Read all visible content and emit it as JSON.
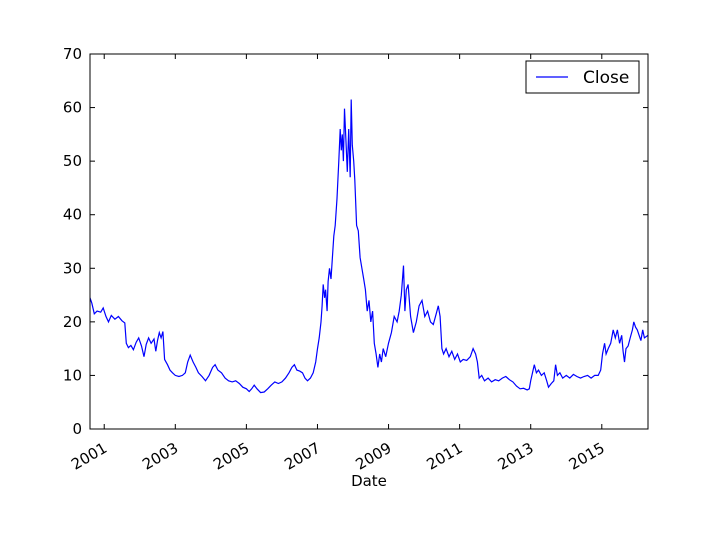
{
  "chart_data": {
    "type": "line",
    "title": "",
    "xlabel": "Date",
    "ylabel": "",
    "xlim": [
      2000.6,
      2016.3
    ],
    "ylim": [
      0,
      70
    ],
    "grid": false,
    "legend_position": "top-right",
    "yticks": [
      0,
      10,
      20,
      30,
      40,
      50,
      60,
      70
    ],
    "xticks": [
      {
        "value": 2001,
        "label": "2001"
      },
      {
        "value": 2003,
        "label": "2003"
      },
      {
        "value": 2005,
        "label": "2005"
      },
      {
        "value": 2007,
        "label": "2007"
      },
      {
        "value": 2009,
        "label": "2009"
      },
      {
        "value": 2011,
        "label": "2011"
      },
      {
        "value": 2013,
        "label": "2013"
      },
      {
        "value": 2015,
        "label": "2015"
      }
    ],
    "series": [
      {
        "name": "Close",
        "color": "#0000ff",
        "points": [
          [
            2000.6,
            24.5
          ],
          [
            2000.65,
            23.5
          ],
          [
            2000.72,
            21.5
          ],
          [
            2000.8,
            22.0
          ],
          [
            2000.9,
            21.8
          ],
          [
            2000.97,
            22.6
          ],
          [
            2001.05,
            21.0
          ],
          [
            2001.12,
            20.0
          ],
          [
            2001.2,
            21.2
          ],
          [
            2001.3,
            20.5
          ],
          [
            2001.4,
            21.0
          ],
          [
            2001.5,
            20.2
          ],
          [
            2001.58,
            19.8
          ],
          [
            2001.62,
            16.0
          ],
          [
            2001.68,
            15.2
          ],
          [
            2001.75,
            15.6
          ],
          [
            2001.82,
            14.8
          ],
          [
            2001.9,
            16.2
          ],
          [
            2001.97,
            17.0
          ],
          [
            2002.05,
            15.5
          ],
          [
            2002.12,
            13.5
          ],
          [
            2002.18,
            15.8
          ],
          [
            2002.25,
            17.0
          ],
          [
            2002.32,
            16.0
          ],
          [
            2002.4,
            16.8
          ],
          [
            2002.45,
            14.5
          ],
          [
            2002.5,
            16.5
          ],
          [
            2002.55,
            18.0
          ],
          [
            2002.6,
            17.0
          ],
          [
            2002.65,
            18.2
          ],
          [
            2002.7,
            13.0
          ],
          [
            2002.78,
            12.0
          ],
          [
            2002.85,
            11.0
          ],
          [
            2002.92,
            10.5
          ],
          [
            2003.0,
            10.0
          ],
          [
            2003.1,
            9.8
          ],
          [
            2003.2,
            10.0
          ],
          [
            2003.28,
            10.5
          ],
          [
            2003.35,
            12.5
          ],
          [
            2003.42,
            13.8
          ],
          [
            2003.5,
            12.5
          ],
          [
            2003.58,
            11.5
          ],
          [
            2003.65,
            10.5
          ],
          [
            2003.75,
            9.8
          ],
          [
            2003.85,
            9.0
          ],
          [
            2003.95,
            10.0
          ],
          [
            2004.05,
            11.5
          ],
          [
            2004.12,
            12.0
          ],
          [
            2004.2,
            11.0
          ],
          [
            2004.3,
            10.5
          ],
          [
            2004.4,
            9.5
          ],
          [
            2004.5,
            9.0
          ],
          [
            2004.6,
            8.8
          ],
          [
            2004.7,
            9.0
          ],
          [
            2004.8,
            8.5
          ],
          [
            2004.9,
            7.8
          ],
          [
            2005.0,
            7.5
          ],
          [
            2005.08,
            7.0
          ],
          [
            2005.15,
            7.5
          ],
          [
            2005.22,
            8.2
          ],
          [
            2005.3,
            7.5
          ],
          [
            2005.4,
            6.8
          ],
          [
            2005.5,
            6.9
          ],
          [
            2005.6,
            7.5
          ],
          [
            2005.7,
            8.2
          ],
          [
            2005.8,
            8.8
          ],
          [
            2005.9,
            8.5
          ],
          [
            2006.0,
            8.8
          ],
          [
            2006.1,
            9.5
          ],
          [
            2006.2,
            10.5
          ],
          [
            2006.28,
            11.5
          ],
          [
            2006.35,
            12.0
          ],
          [
            2006.42,
            11.0
          ],
          [
            2006.5,
            10.8
          ],
          [
            2006.58,
            10.5
          ],
          [
            2006.65,
            9.5
          ],
          [
            2006.72,
            9.0
          ],
          [
            2006.8,
            9.5
          ],
          [
            2006.88,
            10.5
          ],
          [
            2006.95,
            12.5
          ],
          [
            2007.0,
            15.0
          ],
          [
            2007.05,
            17.0
          ],
          [
            2007.1,
            20.0
          ],
          [
            2007.13,
            23.0
          ],
          [
            2007.16,
            27.0
          ],
          [
            2007.2,
            24.5
          ],
          [
            2007.23,
            26.0
          ],
          [
            2007.27,
            22.0
          ],
          [
            2007.3,
            27.5
          ],
          [
            2007.34,
            30.0
          ],
          [
            2007.38,
            28.0
          ],
          [
            2007.42,
            32.0
          ],
          [
            2007.46,
            36.0
          ],
          [
            2007.5,
            38.0
          ],
          [
            2007.55,
            43.0
          ],
          [
            2007.6,
            50.0
          ],
          [
            2007.64,
            56.0
          ],
          [
            2007.67,
            52.0
          ],
          [
            2007.7,
            55.0
          ],
          [
            2007.73,
            50.0
          ],
          [
            2007.76,
            59.8
          ],
          [
            2007.8,
            54.0
          ],
          [
            2007.84,
            48.0
          ],
          [
            2007.88,
            56.0
          ],
          [
            2007.92,
            47.0
          ],
          [
            2007.95,
            61.5
          ],
          [
            2007.98,
            53.0
          ],
          [
            2008.02,
            50.0
          ],
          [
            2008.05,
            46.5
          ],
          [
            2008.1,
            38.0
          ],
          [
            2008.15,
            37.0
          ],
          [
            2008.2,
            32.0
          ],
          [
            2008.25,
            30.0
          ],
          [
            2008.3,
            28.0
          ],
          [
            2008.35,
            26.0
          ],
          [
            2008.4,
            22.0
          ],
          [
            2008.45,
            24.0
          ],
          [
            2008.5,
            20.0
          ],
          [
            2008.55,
            22.0
          ],
          [
            2008.6,
            16.0
          ],
          [
            2008.65,
            14.0
          ],
          [
            2008.7,
            11.5
          ],
          [
            2008.75,
            14.0
          ],
          [
            2008.8,
            12.5
          ],
          [
            2008.85,
            15.0
          ],
          [
            2008.92,
            13.5
          ],
          [
            2009.0,
            16.0
          ],
          [
            2009.08,
            18.0
          ],
          [
            2009.16,
            21.0
          ],
          [
            2009.24,
            20.0
          ],
          [
            2009.3,
            22.0
          ],
          [
            2009.36,
            25.0
          ],
          [
            2009.42,
            30.5
          ],
          [
            2009.46,
            22.0
          ],
          [
            2009.5,
            26.0
          ],
          [
            2009.55,
            27.0
          ],
          [
            2009.62,
            21.0
          ],
          [
            2009.7,
            18.0
          ],
          [
            2009.78,
            20.0
          ],
          [
            2009.86,
            23.0
          ],
          [
            2009.94,
            24.0
          ],
          [
            2010.02,
            21.0
          ],
          [
            2010.1,
            22.0
          ],
          [
            2010.18,
            20.0
          ],
          [
            2010.26,
            19.5
          ],
          [
            2010.34,
            21.5
          ],
          [
            2010.4,
            23.0
          ],
          [
            2010.45,
            21.0
          ],
          [
            2010.5,
            15.0
          ],
          [
            2010.55,
            14.0
          ],
          [
            2010.62,
            15.0
          ],
          [
            2010.7,
            13.5
          ],
          [
            2010.78,
            14.5
          ],
          [
            2010.86,
            13.0
          ],
          [
            2010.94,
            14.0
          ],
          [
            2011.02,
            12.5
          ],
          [
            2011.1,
            13.0
          ],
          [
            2011.2,
            12.8
          ],
          [
            2011.3,
            13.5
          ],
          [
            2011.38,
            15.0
          ],
          [
            2011.45,
            14.0
          ],
          [
            2011.5,
            12.5
          ],
          [
            2011.55,
            9.5
          ],
          [
            2011.62,
            10.0
          ],
          [
            2011.7,
            9.0
          ],
          [
            2011.8,
            9.5
          ],
          [
            2011.9,
            8.8
          ],
          [
            2012.0,
            9.2
          ],
          [
            2012.1,
            9.0
          ],
          [
            2012.2,
            9.5
          ],
          [
            2012.3,
            9.8
          ],
          [
            2012.4,
            9.2
          ],
          [
            2012.5,
            8.8
          ],
          [
            2012.6,
            8.0
          ],
          [
            2012.7,
            7.5
          ],
          [
            2012.8,
            7.6
          ],
          [
            2012.9,
            7.3
          ],
          [
            2012.96,
            7.5
          ],
          [
            2013.0,
            9.0
          ],
          [
            2013.05,
            10.5
          ],
          [
            2013.1,
            12.0
          ],
          [
            2013.16,
            10.5
          ],
          [
            2013.22,
            11.0
          ],
          [
            2013.3,
            10.0
          ],
          [
            2013.38,
            10.5
          ],
          [
            2013.45,
            9.0
          ],
          [
            2013.5,
            7.8
          ],
          [
            2013.58,
            8.5
          ],
          [
            2013.65,
            9.0
          ],
          [
            2013.7,
            12.0
          ],
          [
            2013.75,
            10.0
          ],
          [
            2013.82,
            10.5
          ],
          [
            2013.9,
            9.5
          ],
          [
            2014.0,
            10.0
          ],
          [
            2014.1,
            9.5
          ],
          [
            2014.2,
            10.2
          ],
          [
            2014.3,
            9.8
          ],
          [
            2014.4,
            9.5
          ],
          [
            2014.5,
            9.8
          ],
          [
            2014.6,
            10.0
          ],
          [
            2014.7,
            9.5
          ],
          [
            2014.8,
            10.0
          ],
          [
            2014.9,
            10.0
          ],
          [
            2014.97,
            11.0
          ],
          [
            2015.02,
            14.0
          ],
          [
            2015.08,
            16.0
          ],
          [
            2015.12,
            14.0
          ],
          [
            2015.18,
            15.0
          ],
          [
            2015.25,
            16.0
          ],
          [
            2015.32,
            18.5
          ],
          [
            2015.38,
            17.0
          ],
          [
            2015.44,
            18.5
          ],
          [
            2015.5,
            16.0
          ],
          [
            2015.56,
            17.5
          ],
          [
            2015.6,
            14.5
          ],
          [
            2015.64,
            12.5
          ],
          [
            2015.68,
            15.0
          ],
          [
            2015.74,
            15.5
          ],
          [
            2015.8,
            17.0
          ],
          [
            2015.86,
            18.5
          ],
          [
            2015.9,
            20.0
          ],
          [
            2015.95,
            19.0
          ],
          [
            2016.0,
            18.5
          ],
          [
            2016.05,
            17.5
          ],
          [
            2016.1,
            16.5
          ],
          [
            2016.15,
            18.5
          ],
          [
            2016.2,
            17.0
          ],
          [
            2016.3,
            17.5
          ]
        ]
      }
    ]
  }
}
